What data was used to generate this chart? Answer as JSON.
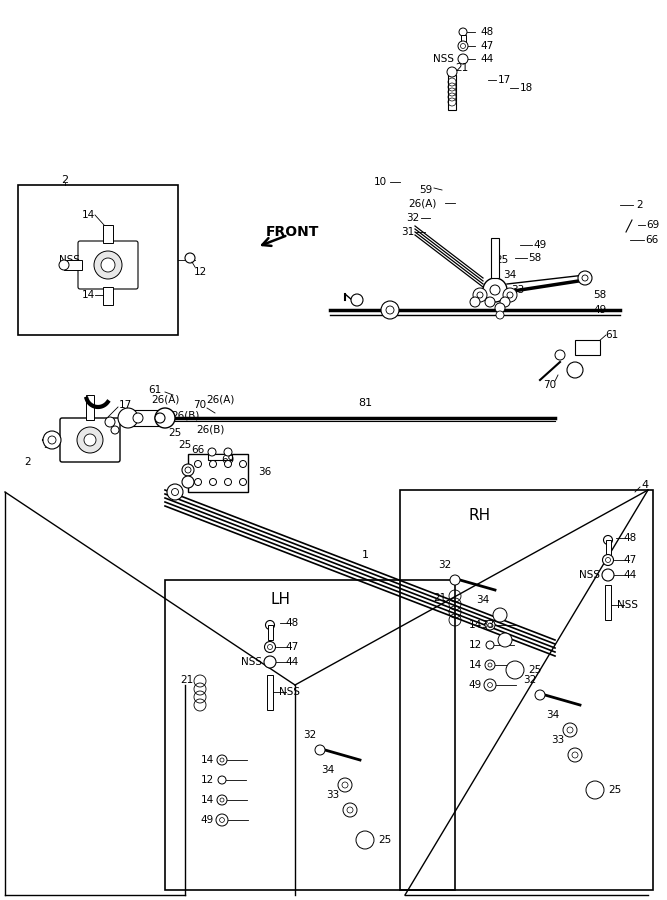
{
  "bg_color": "#ffffff",
  "lc": "#000000",
  "fig_width": 6.67,
  "fig_height": 9.0,
  "dpi": 100,
  "xlim": [
    0,
    667
  ],
  "ylim": [
    0,
    900
  ]
}
